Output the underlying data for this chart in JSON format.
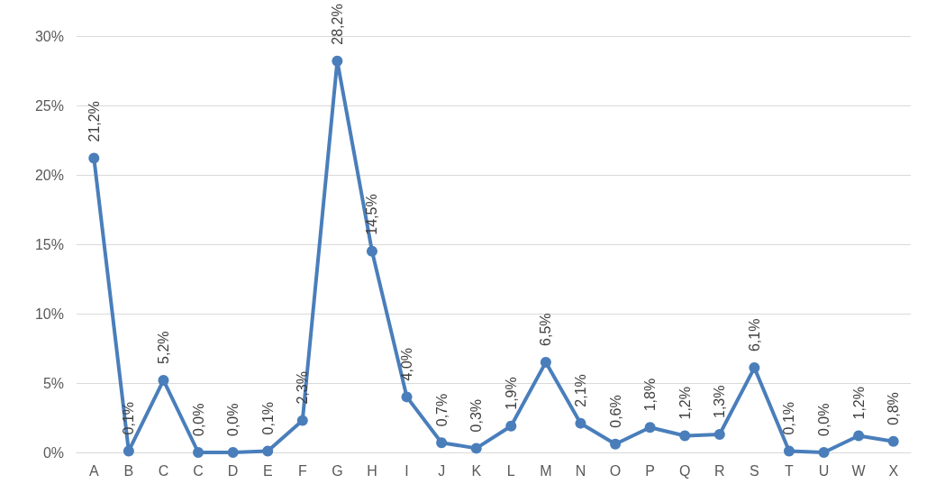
{
  "chart_data": {
    "type": "line",
    "categories": [
      "A",
      "B",
      "C",
      "C",
      "D",
      "E",
      "F",
      "G",
      "H",
      "I",
      "J",
      "K",
      "L",
      "M",
      "N",
      "O",
      "P",
      "Q",
      "R",
      "S",
      "T",
      "U",
      "W",
      "X"
    ],
    "series": [
      {
        "color": "#4a7ebb",
        "values": [
          21.2,
          0.1,
          5.2,
          0.0,
          0.0,
          0.1,
          2.3,
          28.2,
          14.5,
          4.0,
          0.7,
          0.3,
          1.9,
          6.5,
          2.1,
          0.6,
          1.8,
          1.2,
          1.3,
          6.1,
          0.1,
          0.0,
          1.2,
          0.8
        ],
        "value_labels": [
          "21,2%",
          "0,1%",
          "5,2%",
          "0,0%",
          "0,0%",
          "0,1%",
          "2,3%",
          "28,2%",
          "14,5%",
          "4,0%",
          "0,7%",
          "0,3%",
          "1,9%",
          "6,5%",
          "2,1%",
          "0,6%",
          "1,8%",
          "1,2%",
          "1,3%",
          "6,1%",
          "0,1%",
          "0,0%",
          "1,2%",
          "0,8%"
        ]
      }
    ],
    "ylim": [
      0,
      30
    ],
    "yticks": [
      {
        "value": 0,
        "label": "0%"
      },
      {
        "value": 5,
        "label": "5%"
      },
      {
        "value": 10,
        "label": "10%"
      },
      {
        "value": 15,
        "label": "15%"
      },
      {
        "value": 20,
        "label": "20%"
      },
      {
        "value": 25,
        "label": "25%"
      },
      {
        "value": 30,
        "label": "30%"
      }
    ],
    "grid": "y",
    "marker": "circle",
    "line_style": "solid"
  }
}
